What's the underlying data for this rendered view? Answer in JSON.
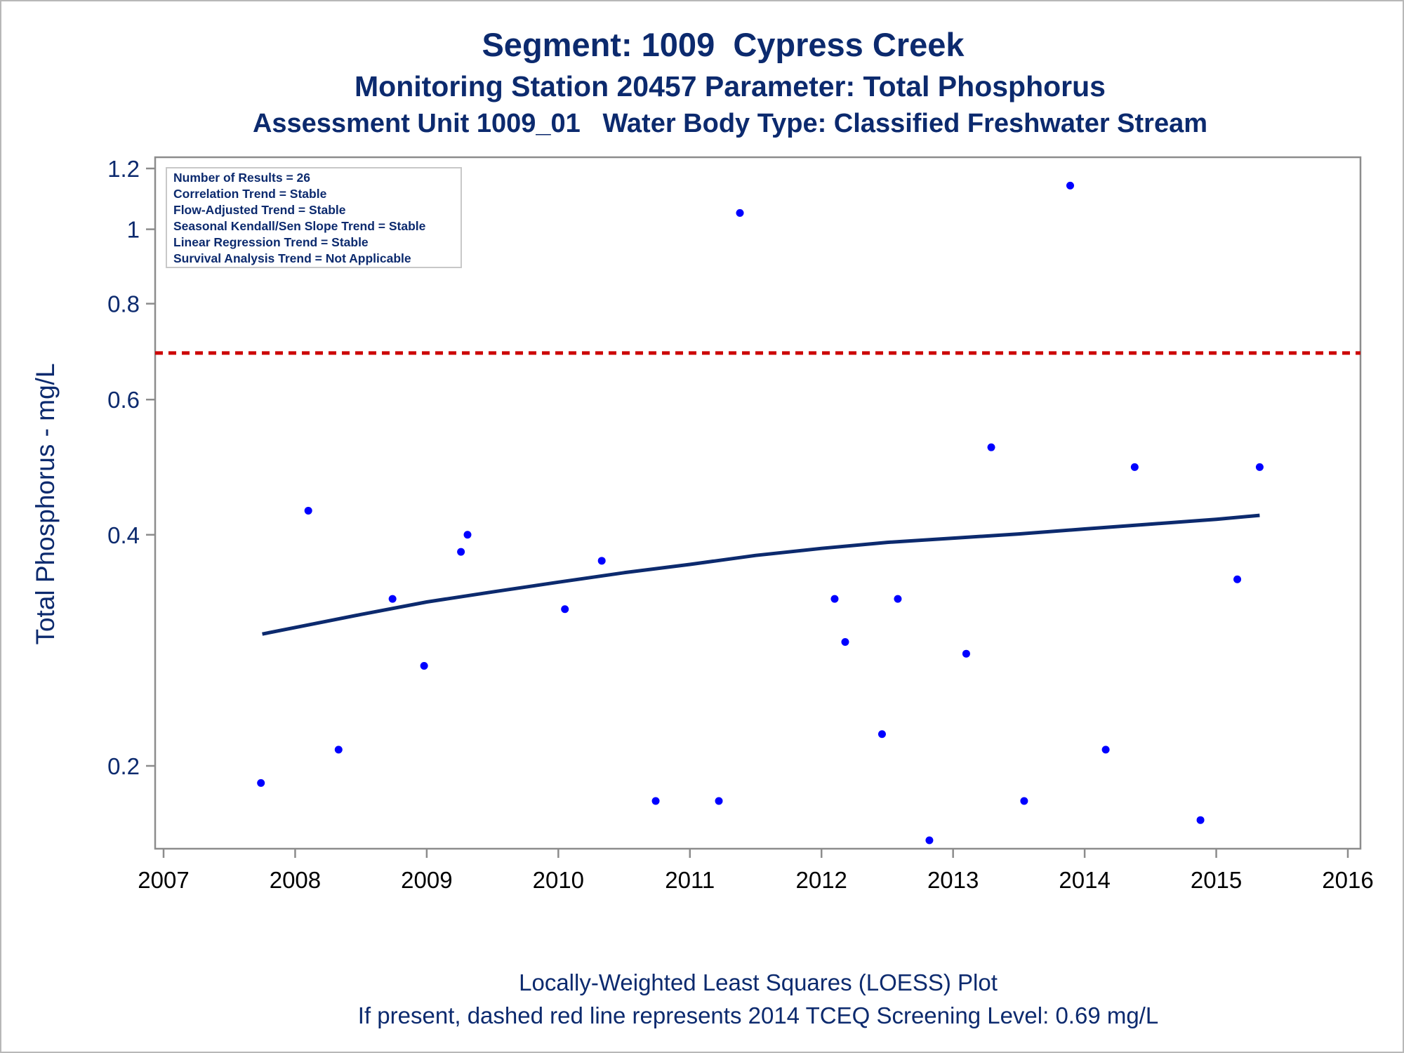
{
  "titles": {
    "line1": "Segment: 1009  Cypress Creek",
    "line2": "Monitoring Station 20457 Parameter: Total Phosphorus",
    "line3": "Assessment Unit 1009_01   Water Body Type: Classified Freshwater Stream"
  },
  "footnotes": {
    "line1": "Locally-Weighted Least Squares (LOESS) Plot",
    "line2": "If present, dashed red line represents 2014 TCEQ Screening Level: 0.69 mg/L"
  },
  "stats_box": [
    "Number of Results = 26",
    "Correlation Trend = Stable",
    "Flow-Adjusted Trend = Stable",
    "Seasonal Kendall/Sen Slope Trend = Stable",
    "Linear Regression Trend = Stable",
    "Survival Analysis Trend = Not Applicable"
  ],
  "colors": {
    "title": "#0c2a6e",
    "points": "#0000ff",
    "loess": "#0c2a6e",
    "screening_line": "#cc0000",
    "axis": "#8c8c8c"
  },
  "chart_data": {
    "type": "scatter",
    "ylabel": "Total Phosphorus - mg/L",
    "xlabel": "",
    "y_scale": "log",
    "xlim": [
      2007,
      2016
    ],
    "ylim": [
      0.15,
      1.22
    ],
    "x_ticks": [
      2007,
      2008,
      2009,
      2010,
      2011,
      2012,
      2013,
      2014,
      2015,
      2016
    ],
    "y_ticks": [
      0.2,
      0.4,
      0.6,
      0.8,
      1,
      1.2
    ],
    "y_tick_labels": [
      "0.2",
      "0.4",
      "0.6",
      "0.8",
      "1",
      "1.2"
    ],
    "screening_level": 0.69,
    "points": [
      {
        "x": 2007.74,
        "y": 0.19
      },
      {
        "x": 2008.1,
        "y": 0.43
      },
      {
        "x": 2008.33,
        "y": 0.21
      },
      {
        "x": 2008.74,
        "y": 0.33
      },
      {
        "x": 2008.98,
        "y": 0.27
      },
      {
        "x": 2009.26,
        "y": 0.38
      },
      {
        "x": 2009.31,
        "y": 0.4
      },
      {
        "x": 2010.05,
        "y": 0.32
      },
      {
        "x": 2010.33,
        "y": 0.37
      },
      {
        "x": 2010.74,
        "y": 0.18
      },
      {
        "x": 2011.22,
        "y": 0.18
      },
      {
        "x": 2011.38,
        "y": 1.05
      },
      {
        "x": 2012.1,
        "y": 0.33
      },
      {
        "x": 2012.18,
        "y": 0.29
      },
      {
        "x": 2012.46,
        "y": 0.22
      },
      {
        "x": 2012.58,
        "y": 0.33
      },
      {
        "x": 2012.82,
        "y": 0.16
      },
      {
        "x": 2013.1,
        "y": 0.28
      },
      {
        "x": 2013.29,
        "y": 0.52
      },
      {
        "x": 2013.54,
        "y": 0.18
      },
      {
        "x": 2013.89,
        "y": 1.14
      },
      {
        "x": 2014.16,
        "y": 0.21
      },
      {
        "x": 2014.38,
        "y": 0.49
      },
      {
        "x": 2014.88,
        "y": 0.17
      },
      {
        "x": 2015.16,
        "y": 0.35
      },
      {
        "x": 2015.33,
        "y": 0.49
      }
    ],
    "loess_line": [
      {
        "x": 2007.75,
        "y": 0.297
      },
      {
        "x": 2008.5,
        "y": 0.315
      },
      {
        "x": 2009.0,
        "y": 0.327
      },
      {
        "x": 2009.5,
        "y": 0.337
      },
      {
        "x": 2010.0,
        "y": 0.347
      },
      {
        "x": 2010.5,
        "y": 0.357
      },
      {
        "x": 2011.0,
        "y": 0.366
      },
      {
        "x": 2011.5,
        "y": 0.376
      },
      {
        "x": 2012.0,
        "y": 0.384
      },
      {
        "x": 2012.5,
        "y": 0.391
      },
      {
        "x": 2013.0,
        "y": 0.396
      },
      {
        "x": 2013.5,
        "y": 0.401
      },
      {
        "x": 2014.0,
        "y": 0.407
      },
      {
        "x": 2014.5,
        "y": 0.413
      },
      {
        "x": 2015.0,
        "y": 0.419
      },
      {
        "x": 2015.33,
        "y": 0.424
      }
    ]
  }
}
